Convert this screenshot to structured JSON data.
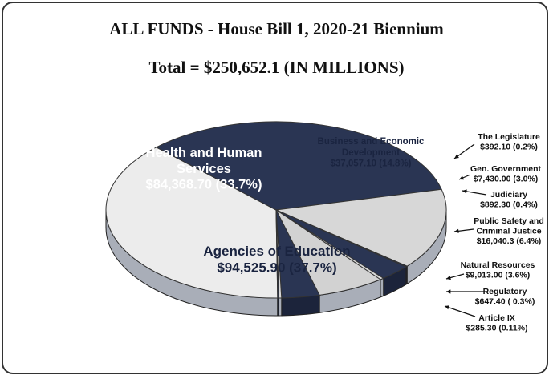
{
  "chart_data": {
    "type": "pie",
    "title": "ALL FUNDS - House Bill 1, 2020-21 Biennium",
    "subtitle": "Total = $250,652.1 (IN MILLIONS)",
    "slices": [
      {
        "name": "Agencies of Education",
        "value_text": "$94,525.90 (37.7%)",
        "value": 94525.9,
        "percent": 37.7,
        "color": "#ececec"
      },
      {
        "name": "Health and Human Services",
        "value_text": "$84,368.70 (33.7%)",
        "value": 84368.7,
        "percent": 33.7,
        "color": "#2a3553"
      },
      {
        "name": "Business and Economic Development",
        "value_text": "$37,057.10 (14.8%)",
        "value": 37057.1,
        "percent": 14.8,
        "color": "#d7d7d7"
      },
      {
        "name": "The Legislature",
        "value_text": "$392.10 (0.2%)",
        "value": 392.1,
        "percent": 0.2,
        "color": "#2a3553"
      },
      {
        "name": "Gen. Government",
        "value_text": "$7,430.00 (3.0%)",
        "value": 7430.0,
        "percent": 3.0,
        "color": "#2a3553"
      },
      {
        "name": "Judiciary",
        "value_text": "$892.30 (0.4%)",
        "value": 892.3,
        "percent": 0.4,
        "color": "#d7d7d7"
      },
      {
        "name": "Public Safety and Criminal Justice",
        "value_text": "$16,040.3 (6.4%)",
        "value": 16040.3,
        "percent": 6.4,
        "color": "#d2d2d2"
      },
      {
        "name": "Natural Resources",
        "value_text": "$9,013.00 (3.6%)",
        "value": 9013.0,
        "percent": 3.6,
        "color": "#2a3553"
      },
      {
        "name": "Regulatory",
        "value_text": "$647.40 ( 0.3%)",
        "value": 647.4,
        "percent": 0.3,
        "color": "#d7d7d7"
      },
      {
        "name": "Article IX",
        "value_text": "$285.30 (0.11%)",
        "value": 285.3,
        "percent": 0.11,
        "color": "#2a3553"
      }
    ],
    "callout_lines": {
      "Health and Human Services": [
        "Health and Human",
        "Services"
      ],
      "Business and Economic Development": [
        "Business and Economic",
        "Development"
      ],
      "Public Safety and Criminal Justice": [
        "Public Safety and",
        "Criminal Justice"
      ]
    }
  }
}
